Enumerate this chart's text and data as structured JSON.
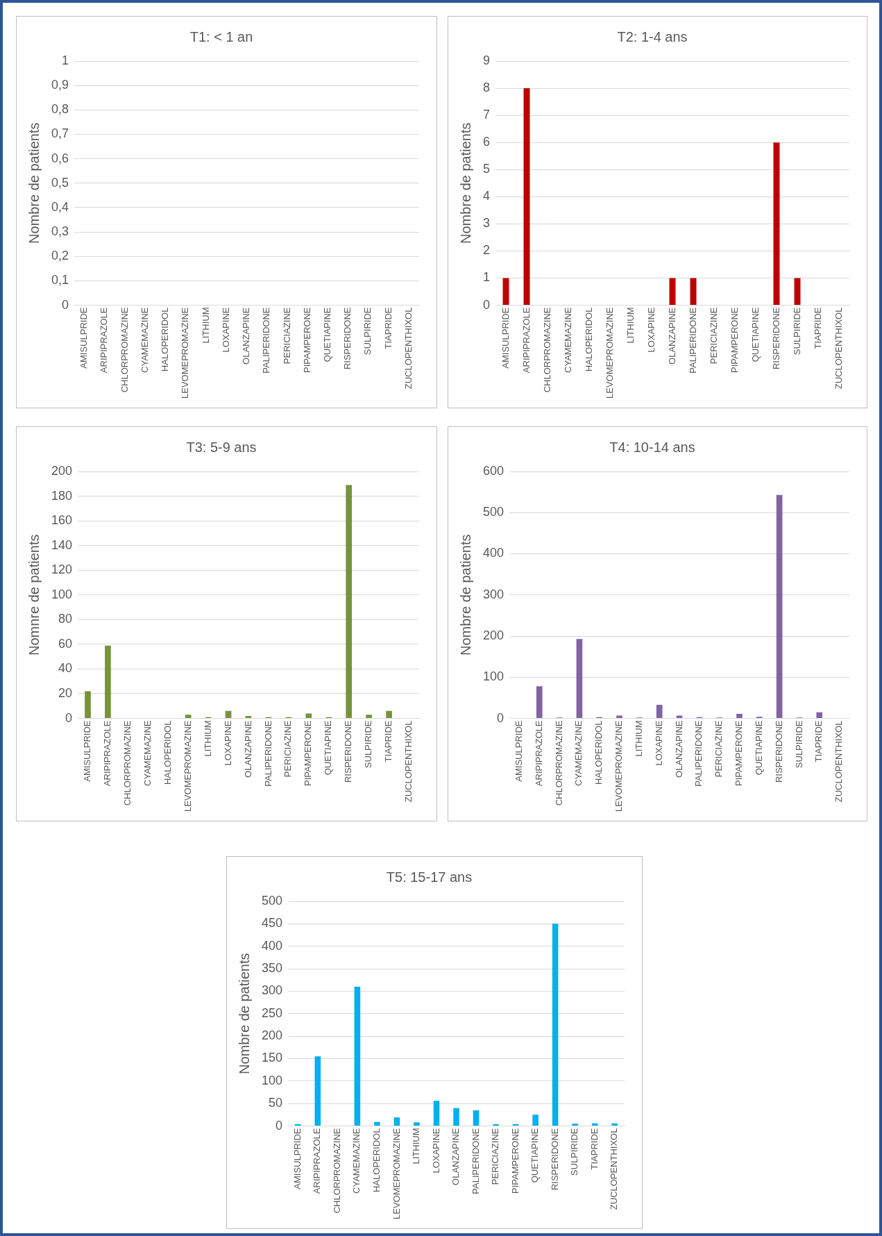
{
  "chart_data": [
    {
      "type": "bar",
      "title": "T1: < 1 an",
      "ylabel": "Nombre de patients",
      "categories": [
        "AMISULPRIDE",
        "ARIPIPRAZOLE",
        "CHLORPROMAZINE",
        "CYAMEMAZINE",
        "HALOPERIDOL",
        "LEVOMEPROMAZINE",
        "LITHIUM",
        "LOXAPINE",
        "OLANZAPINE",
        "PALIPERIDONE",
        "PERICIAZINE",
        "PIPAMPERONE",
        "QUETIAPINE",
        "RISPERIDONE",
        "SULPIRIDE",
        "TIAPRIDE",
        "ZUCLOPENTHIXOL"
      ],
      "values": [
        0,
        0,
        0,
        0,
        0,
        0,
        0,
        0,
        0,
        0,
        0,
        0,
        0,
        0,
        0,
        0,
        0
      ],
      "color": "#4472c4",
      "ylim": [
        0,
        1
      ],
      "yticks": [
        0,
        {
          "value": 0.1,
          "label": "0,1"
        },
        {
          "value": 0.2,
          "label": "0,2"
        },
        {
          "value": 0.3,
          "label": "0,3"
        },
        {
          "value": 0.4,
          "label": "0,4"
        },
        {
          "value": 0.5,
          "label": "0,5"
        },
        {
          "value": 0.6,
          "label": "0,6"
        },
        {
          "value": 0.7,
          "label": "0,7"
        },
        {
          "value": 0.8,
          "label": "0,8"
        },
        {
          "value": 0.9,
          "label": "0,9"
        },
        1
      ],
      "grid": "y"
    },
    {
      "type": "bar",
      "title": "T2: 1-4 ans",
      "ylabel": "Nombre de patients",
      "categories": [
        "AMISULPRIDE",
        "ARIPIPRAZOLE",
        "CHLORPROMAZINE",
        "CYAMEMAZINE",
        "HALOPERIDOL",
        "LEVOMEPROMAZINE",
        "LITHIUM",
        "LOXAPINE",
        "OLANZAPINE",
        "PALIPERIDONE",
        "PERICIAZINE",
        "PIPAMPERONE",
        "QUETIAPINE",
        "RISPERIDONE",
        "SULPIRIDE",
        "TIAPRIDE",
        "ZUCLOPENTHIXOL"
      ],
      "values": [
        1,
        8,
        0,
        0,
        0,
        0,
        0,
        0,
        1,
        1,
        0,
        0,
        0,
        6,
        1,
        0,
        0
      ],
      "color": "#c00000",
      "ylim": [
        0,
        9
      ],
      "yticks": [
        0,
        1,
        2,
        3,
        4,
        5,
        6,
        7,
        8,
        9
      ],
      "grid": "y"
    },
    {
      "type": "bar",
      "title": "T3: 5-9 ans",
      "ylabel": "Nomnre de patients",
      "categories": [
        "AMISULPRIDE",
        "ARIPIPRAZOLE",
        "CHLORPROMAZINE",
        "CYAMEMAZINE",
        "HALOPERIDOL",
        "LEVOMEPROMAZINE",
        "LITHIUM",
        "LOXAPINE",
        "OLANZAPINE",
        "PALIPERIDONE",
        "PERICIAZINE",
        "PIPAMPERONE",
        "QUETIAPINE",
        "RISPERIDONE",
        "SULPIRIDE",
        "TIAPRIDE",
        "ZUCLOPENTHIXOL"
      ],
      "values": [
        22,
        59,
        0,
        0,
        0,
        3,
        1,
        6,
        2,
        1,
        1,
        4,
        1,
        189,
        3,
        6,
        0
      ],
      "color": "#77933c",
      "ylim": [
        0,
        200
      ],
      "yticks": [
        0,
        20,
        40,
        60,
        80,
        100,
        120,
        140,
        160,
        180,
        200
      ],
      "grid": "y"
    },
    {
      "type": "bar",
      "title": "T4: 10-14 ans",
      "ylabel": "Nombre de patients",
      "categories": [
        "AMISULPRIDE",
        "ARIPIPRAZOLE",
        "CHLORPROMAZINE",
        "CYAMEMAZINE",
        "HALOPERIDOL",
        "LEVOMEPROMAZINE",
        "LITHIUM",
        "LOXAPINE",
        "OLANZAPINE",
        "PALIPERIDONE",
        "PERICIAZINE",
        "PIPAMPERONE",
        "QUETIAPINE",
        "RISPERIDONE",
        "SULPIRIDE",
        "TIAPRIDE",
        "ZUCLOPENTHIXOL"
      ],
      "values": [
        0,
        78,
        2,
        193,
        3,
        7,
        2,
        33,
        7,
        3,
        2,
        11,
        4,
        543,
        2,
        15,
        0
      ],
      "color": "#8064a2",
      "ylim": [
        0,
        600
      ],
      "yticks": [
        0,
        100,
        200,
        300,
        400,
        500,
        600
      ],
      "grid": "y"
    },
    {
      "type": "bar",
      "title": "T5: 15-17 ans",
      "ylabel": "Nombre de patients",
      "categories": [
        "AMISULPRIDE",
        "ARIPIPRAZOLE",
        "CHLORPROMAZINE",
        "CYAMEMAZINE",
        "HALOPERIDOL",
        "LEVOMEPROMAZINE",
        "LITHIUM",
        "LOXAPINE",
        "OLANZAPINE",
        "PALIPERIDONE",
        "PERICIAZINE",
        "PIPAMPERONE",
        "QUETIAPINE",
        "RISPERIDONE",
        "SULPIRIDE",
        "TIAPRIDE",
        "ZUCLOPENTHIXOL"
      ],
      "values": [
        4,
        155,
        0,
        310,
        9,
        19,
        8,
        56,
        40,
        35,
        4,
        4,
        25,
        450,
        5,
        6,
        6
      ],
      "color": "#00b0f0",
      "ylim": [
        0,
        500
      ],
      "yticks": [
        0,
        50,
        100,
        150,
        200,
        250,
        300,
        350,
        400,
        450,
        500
      ],
      "grid": "y"
    }
  ]
}
